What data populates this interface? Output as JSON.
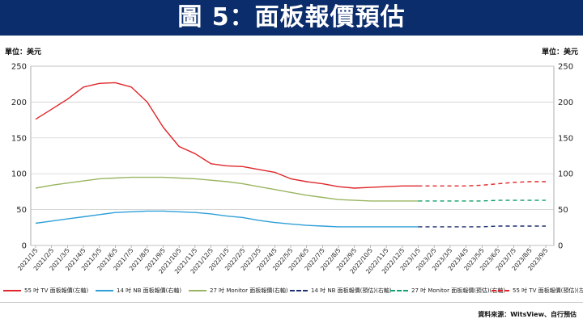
{
  "title": "圖 5：面板報價預估",
  "unit_left": "單位：美元",
  "unit_right": "單位：美元",
  "source": "資料來源：WitsView、自行預估",
  "colors": {
    "banner": "#0b2d6b",
    "tv": "#e0262a",
    "nb": "#2e9fd8",
    "monitor": "#9ab561",
    "nb_forecast": "#1d2f6e",
    "monitor_forecast": "#12a06b",
    "tv_forecast": "#e0262a"
  },
  "chart_data": {
    "type": "line",
    "yticks_left": [
      "0",
      "50",
      "100",
      "150",
      "200",
      "250"
    ],
    "yticks_right": [
      "0",
      "50",
      "100",
      "150",
      "200",
      "250"
    ],
    "ylim": [
      0,
      250
    ],
    "x_labels": [
      "2021/1/5",
      "2021/2/5",
      "2021/3/5",
      "2021/4/5",
      "2021/5/5",
      "2021/6/5",
      "2021/7/5",
      "2021/8/5",
      "2021/9/5",
      "2021/10/5",
      "2021/11/5",
      "2021/12/5",
      "2022/1/5",
      "2022/2/5",
      "2022/3/5",
      "2022/4/5",
      "2022/5/5",
      "2022/6/5",
      "2022/7/5",
      "2022/8/5",
      "2022/9/5",
      "2022/10/5",
      "2022/11/5",
      "2022/12/5",
      "2023/1/5",
      "2023/2/5",
      "2023/3/5",
      "2023/4/5",
      "2023/5/5",
      "2023/6/5",
      "2023/7/5",
      "2023/8/5",
      "2023/9/5"
    ],
    "actual_months": [
      "2021/1",
      "2021/2",
      "2021/3",
      "2021/4",
      "2021/5",
      "2021/6",
      "2021/7",
      "2021/8",
      "2021/9",
      "2021/10",
      "2021/11",
      "2021/12",
      "2022/1",
      "2022/2",
      "2022/3",
      "2022/4",
      "2022/5",
      "2022/6",
      "2022/7",
      "2022/8",
      "2022/9",
      "2022/10",
      "2022/11",
      "2022/12",
      "2023/1"
    ],
    "forecast_months": [
      "2023/1",
      "2023/2",
      "2023/3",
      "2023/4",
      "2023/5",
      "2023/6",
      "2023/7",
      "2023/8",
      "2023/9"
    ],
    "series": [
      {
        "key": "tv",
        "name": "55 吋 TV 面板報價(左軸)",
        "axis": "left",
        "style": "solid",
        "values": [
          176,
          190,
          204,
          221,
          226,
          227,
          221,
          200,
          165,
          138,
          128,
          114,
          111,
          110,
          106,
          102,
          93,
          89,
          86,
          82,
          80,
          81,
          82,
          83,
          83
        ]
      },
      {
        "key": "nb",
        "name": "14 吋 NB 面板報價(右軸)",
        "axis": "right",
        "style": "solid",
        "values": [
          31,
          34,
          37,
          40,
          43,
          46,
          47,
          48,
          48,
          47,
          46,
          44,
          41,
          39,
          35,
          32,
          30,
          28,
          27,
          26,
          26,
          26,
          26,
          26,
          26
        ]
      },
      {
        "key": "monitor",
        "name": "27 吋 Monitor 面板報價(右軸)",
        "axis": "right",
        "style": "solid",
        "values": [
          80,
          84,
          87,
          90,
          93,
          94,
          95,
          95,
          95,
          94,
          93,
          91,
          89,
          86,
          82,
          78,
          74,
          70,
          67,
          64,
          63,
          62,
          62,
          62,
          62
        ]
      },
      {
        "key": "nb_forecast",
        "name": "14 吋 NB 面板報價(預估)(右軸)",
        "axis": "right",
        "style": "dashed",
        "values": [
          26,
          26,
          26,
          26,
          26,
          27,
          27,
          27,
          27
        ]
      },
      {
        "key": "monitor_forecast",
        "name": "27 吋 Monitor 面板報價(預估)(右軸)",
        "axis": "right",
        "style": "dashed",
        "values": [
          62,
          62,
          62,
          62,
          62,
          63,
          63,
          63,
          63
        ]
      },
      {
        "key": "tv_forecast",
        "name": "55 吋 TV 面板報價(預估)(左軸)",
        "axis": "left",
        "style": "dashed",
        "values": [
          83,
          83,
          83,
          83,
          84,
          86,
          88,
          89,
          89
        ]
      }
    ]
  }
}
